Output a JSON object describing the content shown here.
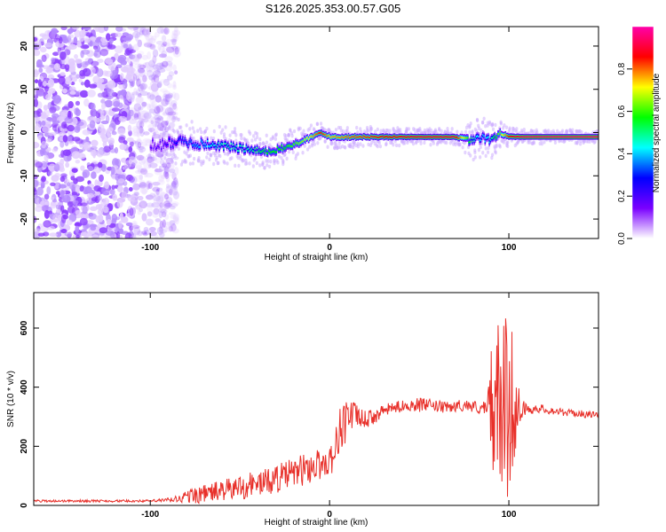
{
  "title": "S126.2025.353.00.57.G05",
  "chart_data": [
    {
      "type": "heatmap",
      "title": "",
      "xlabel": "Height of straight line (km)",
      "ylabel": "Frequency (Hz)",
      "xlim": [
        -165,
        150
      ],
      "ylim": [
        -24.5,
        24.5
      ],
      "xticks": [
        -100,
        0,
        100
      ],
      "yticks": [
        -20,
        -10,
        0,
        10,
        20
      ],
      "colorbar": {
        "label": "Normalized spectral amplitude",
        "range": [
          0,
          1
        ],
        "ticks": [
          0.0,
          0.2,
          0.4,
          0.6,
          0.8
        ],
        "colormap": [
          "#ffffff",
          "#7a00ff",
          "#0000ff",
          "#00ffff",
          "#00ff00",
          "#ffff00",
          "#ff0000",
          "#ff00aa"
        ]
      },
      "ridge": {
        "x": [
          -95,
          -85,
          -75,
          -60,
          -45,
          -35,
          -25,
          -15,
          -5,
          0,
          10,
          30,
          50,
          70,
          80,
          85,
          90,
          95,
          100,
          110,
          150
        ],
        "freq_hz": [
          -3,
          -2,
          -2.5,
          -3,
          -4,
          -4.5,
          -3.5,
          -2,
          0,
          -1,
          -1,
          -1,
          -1,
          -1,
          -2,
          -1,
          -2,
          0,
          -1,
          -1,
          -1
        ],
        "strength": [
          0.2,
          0.3,
          0.4,
          0.5,
          0.5,
          0.6,
          0.6,
          0.7,
          0.9,
          0.8,
          0.85,
          0.9,
          0.95,
          0.95,
          0.5,
          0.4,
          0.5,
          0.7,
          0.9,
          1.0,
          1.0
        ]
      },
      "noise_region_x": [
        -165,
        -95
      ]
    },
    {
      "type": "line",
      "title": "",
      "xlabel": "Height of straight line (km)",
      "ylabel": "SNR (10 * v/v)",
      "xlim": [
        -165,
        150
      ],
      "ylim": [
        0,
        720
      ],
      "xticks": [
        -100,
        0,
        100
      ],
      "yticks": [
        0,
        200,
        400,
        600
      ],
      "color": "#e8302a",
      "x": [
        -165,
        -140,
        -120,
        -100,
        -90,
        -85,
        -80,
        -75,
        -70,
        -65,
        -60,
        -55,
        -50,
        -45,
        -40,
        -35,
        -30,
        -25,
        -20,
        -15,
        -10,
        -5,
        0,
        3,
        5,
        8,
        10,
        12,
        15,
        20,
        25,
        30,
        35,
        40,
        45,
        50,
        55,
        60,
        65,
        70,
        75,
        80,
        85,
        88,
        90,
        92,
        94,
        96,
        98,
        100,
        102,
        104,
        106,
        108,
        110,
        115,
        120,
        130,
        140,
        150
      ],
      "values": [
        15,
        15,
        15,
        15,
        18,
        20,
        30,
        35,
        40,
        45,
        50,
        55,
        60,
        70,
        75,
        80,
        90,
        100,
        110,
        120,
        130,
        140,
        150,
        180,
        250,
        280,
        300,
        310,
        300,
        290,
        300,
        320,
        330,
        335,
        340,
        340,
        340,
        335,
        330,
        335,
        340,
        335,
        330,
        320,
        350,
        300,
        360,
        320,
        340,
        330,
        340,
        320,
        340,
        330,
        320,
        330,
        325,
        315,
        310,
        305
      ],
      "noise_amplitude": [
        4,
        4,
        4,
        4,
        8,
        15,
        20,
        30,
        30,
        35,
        35,
        40,
        45,
        45,
        45,
        45,
        50,
        50,
        50,
        55,
        55,
        55,
        50,
        60,
        80,
        90,
        70,
        60,
        40,
        30,
        25,
        20,
        20,
        20,
        20,
        25,
        20,
        20,
        20,
        20,
        20,
        20,
        25,
        30,
        240,
        180,
        280,
        250,
        300,
        320,
        260,
        120,
        60,
        30,
        20,
        15,
        15,
        12,
        12,
        12
      ]
    }
  ]
}
